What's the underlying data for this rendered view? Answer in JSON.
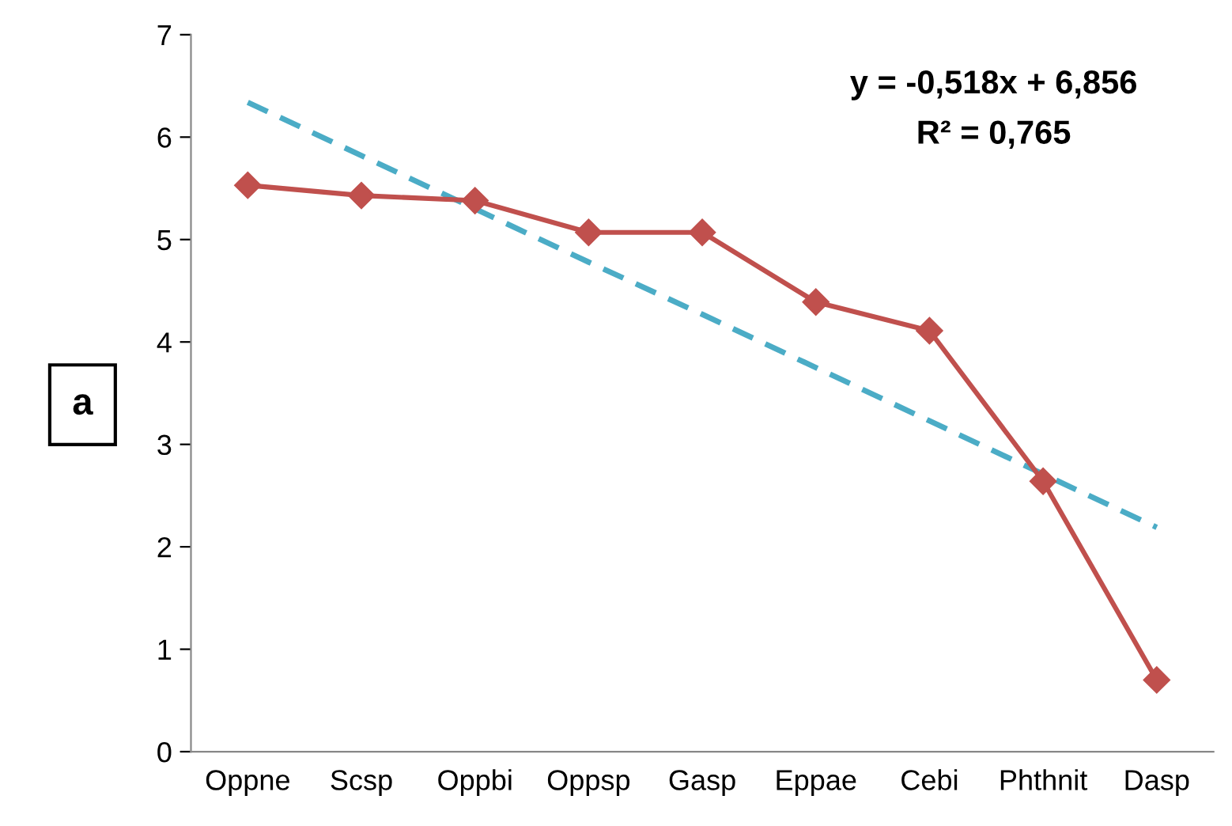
{
  "chart_data": {
    "type": "line",
    "categories": [
      "Oppne",
      "Scsp",
      "Oppbi",
      "Oppsp",
      "Gasp",
      "Eppae",
      "Cebi",
      "Phthnit",
      "Dasp"
    ],
    "series": [
      {
        "color": "#c0504d",
        "marker": "diamond",
        "line_style": "solid",
        "values": [
          5.53,
          5.43,
          5.38,
          5.07,
          5.07,
          4.39,
          4.11,
          2.64,
          0.7
        ]
      },
      {
        "color": "#4bacc6",
        "marker": "none",
        "line_style": "dashed",
        "values": [
          6.34,
          5.82,
          5.3,
          4.78,
          4.27,
          3.75,
          3.23,
          2.71,
          2.19
        ]
      }
    ],
    "ylim": [
      0,
      7
    ],
    "yticks": [
      0,
      1,
      2,
      3,
      4,
      5,
      6,
      7
    ],
    "grid": false,
    "legend": false,
    "annotations": [
      "y = -0,518x + 6,856",
      "R² = 0,765",
      "a"
    ]
  }
}
